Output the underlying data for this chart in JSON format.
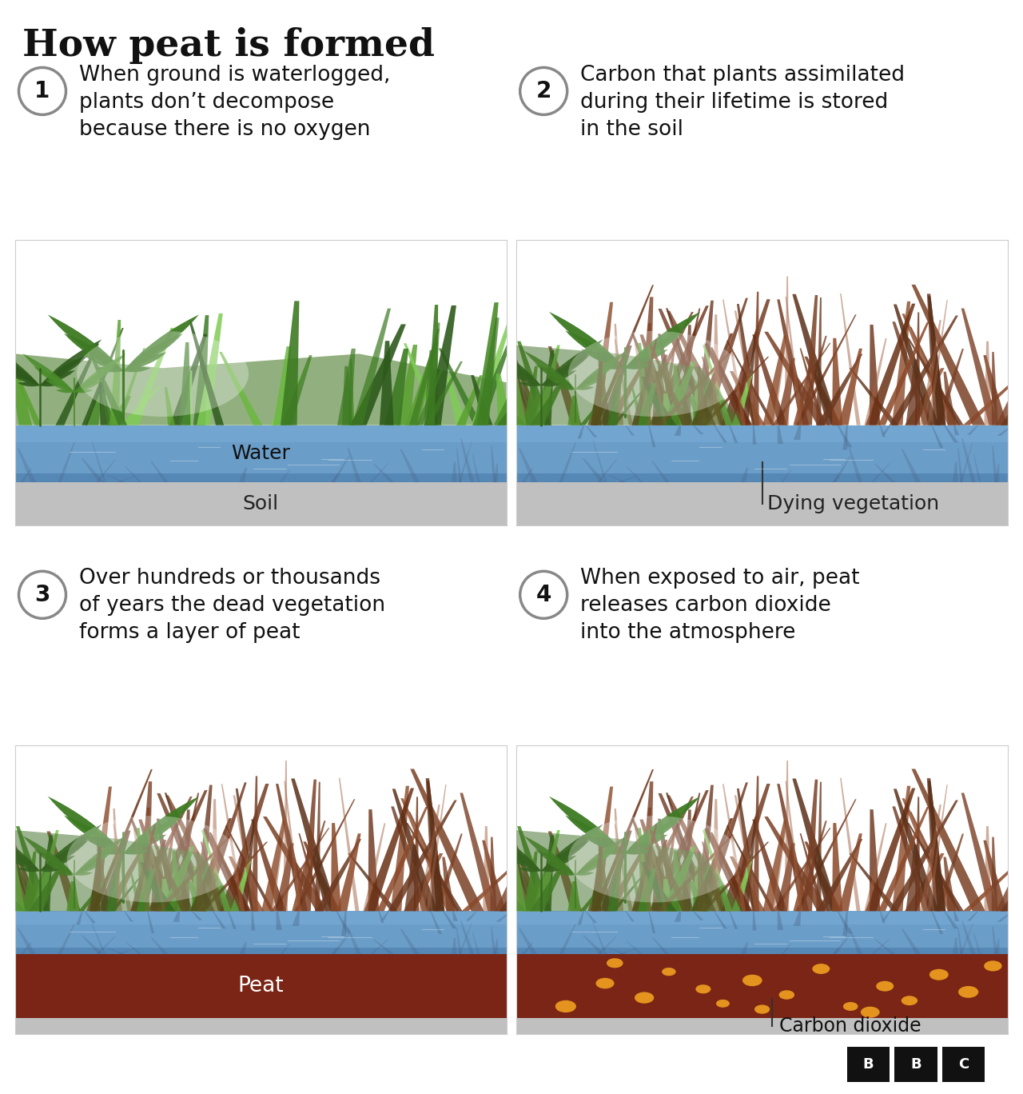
{
  "title": "How peat is formed",
  "title_fontsize": 34,
  "title_fontweight": "bold",
  "bg_color": "#ffffff",
  "stages": [
    {
      "number": "1",
      "text": "When ground is waterlogged,\nplants don’t decompose\nbecause there is no oxygen",
      "water_label": "Water",
      "soil_label": "Soil",
      "has_dying_veg": false,
      "has_peat": false,
      "has_co2": false
    },
    {
      "number": "2",
      "text": "Carbon that plants assimilated\nduring their lifetime is stored\nin the soil",
      "dying_veg_label": "Dying vegetation",
      "has_dying_veg": true,
      "has_peat": false,
      "has_co2": false
    },
    {
      "number": "3",
      "text": "Over hundreds or thousands\nof years the dead vegetation\nforms a layer of peat",
      "peat_label": "Peat",
      "has_dying_veg": true,
      "has_peat": true,
      "has_co2": false
    },
    {
      "number": "4",
      "text": "When exposed to air, peat\nreleases carbon dioxide\ninto the atmosphere",
      "co2_label": "Carbon dioxide",
      "has_dying_veg": true,
      "has_peat": true,
      "has_co2": true
    }
  ],
  "circle_color": "#888888",
  "circle_lw": 2.5,
  "number_fontsize": 20,
  "label_fontsize": 17,
  "text_fontsize": 19,
  "water_color": "#6a9dc8",
  "water_dark": "#4a7aaa",
  "water_mid": "#7aadd8",
  "soil_color": "#c0c0c0",
  "soil_dark": "#a8a8a8",
  "peat_color": "#7a2515",
  "peat_dark": "#5a1a10",
  "green_colors": [
    "#2d5a1b",
    "#3d7a25",
    "#4a8c2a",
    "#5aa030",
    "#6ab840",
    "#80cc55"
  ],
  "green_mid": "#88c060",
  "dead_colors": [
    "#5a3018",
    "#6b3820",
    "#7a4025",
    "#8a4828",
    "#6a3015"
  ],
  "dead_mid": "#7a4028",
  "co2_color": "#f0a020"
}
